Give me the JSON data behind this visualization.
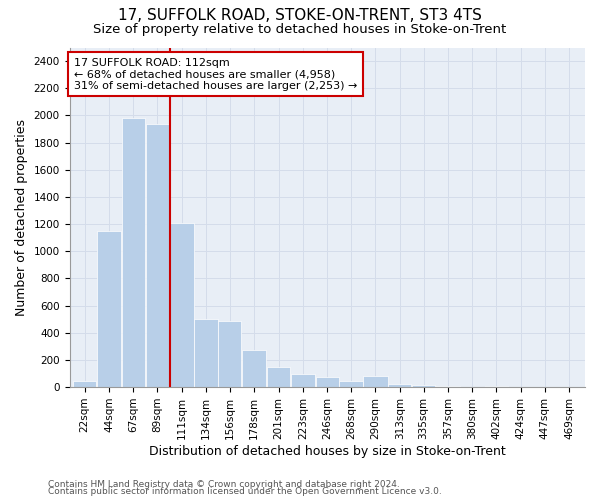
{
  "title": "17, SUFFOLK ROAD, STOKE-ON-TRENT, ST3 4TS",
  "subtitle": "Size of property relative to detached houses in Stoke-on-Trent",
  "xlabel": "Distribution of detached houses by size in Stoke-on-Trent",
  "ylabel": "Number of detached properties",
  "bar_color": "#b8cfe8",
  "grid_color": "#d4dcea",
  "background_color": "#e8eef6",
  "annotation_box_color": "#cc0000",
  "property_line_color": "#cc0000",
  "property_sqm": 112,
  "annotation_line1": "17 SUFFOLK ROAD: 112sqm",
  "annotation_line2": "← 68% of detached houses are smaller (4,958)",
  "annotation_line3": "31% of semi-detached houses are larger (2,253) →",
  "footer_line1": "Contains HM Land Registry data © Crown copyright and database right 2024.",
  "footer_line2": "Contains public sector information licensed under the Open Government Licence v3.0.",
  "bin_labels": [
    "22sqm",
    "44sqm",
    "67sqm",
    "89sqm",
    "111sqm",
    "134sqm",
    "156sqm",
    "178sqm",
    "201sqm",
    "223sqm",
    "246sqm",
    "268sqm",
    "290sqm",
    "313sqm",
    "335sqm",
    "357sqm",
    "380sqm",
    "402sqm",
    "424sqm",
    "447sqm",
    "469sqm"
  ],
  "bin_edges": [
    22,
    44,
    67,
    89,
    111,
    134,
    156,
    178,
    201,
    223,
    246,
    268,
    290,
    313,
    335,
    357,
    380,
    402,
    424,
    447,
    469,
    492
  ],
  "bar_heights": [
    45,
    1150,
    1980,
    1940,
    1210,
    500,
    490,
    275,
    150,
    100,
    75,
    45,
    85,
    22,
    12,
    8,
    4,
    6,
    3,
    2,
    2
  ],
  "ylim": [
    0,
    2500
  ],
  "yticks": [
    0,
    200,
    400,
    600,
    800,
    1000,
    1200,
    1400,
    1600,
    1800,
    2000,
    2200,
    2400
  ],
  "title_fontsize": 11,
  "subtitle_fontsize": 9.5,
  "ylabel_fontsize": 9,
  "xlabel_fontsize": 9,
  "tick_fontsize": 7.5,
  "footer_fontsize": 6.5,
  "ann_fontsize": 8
}
